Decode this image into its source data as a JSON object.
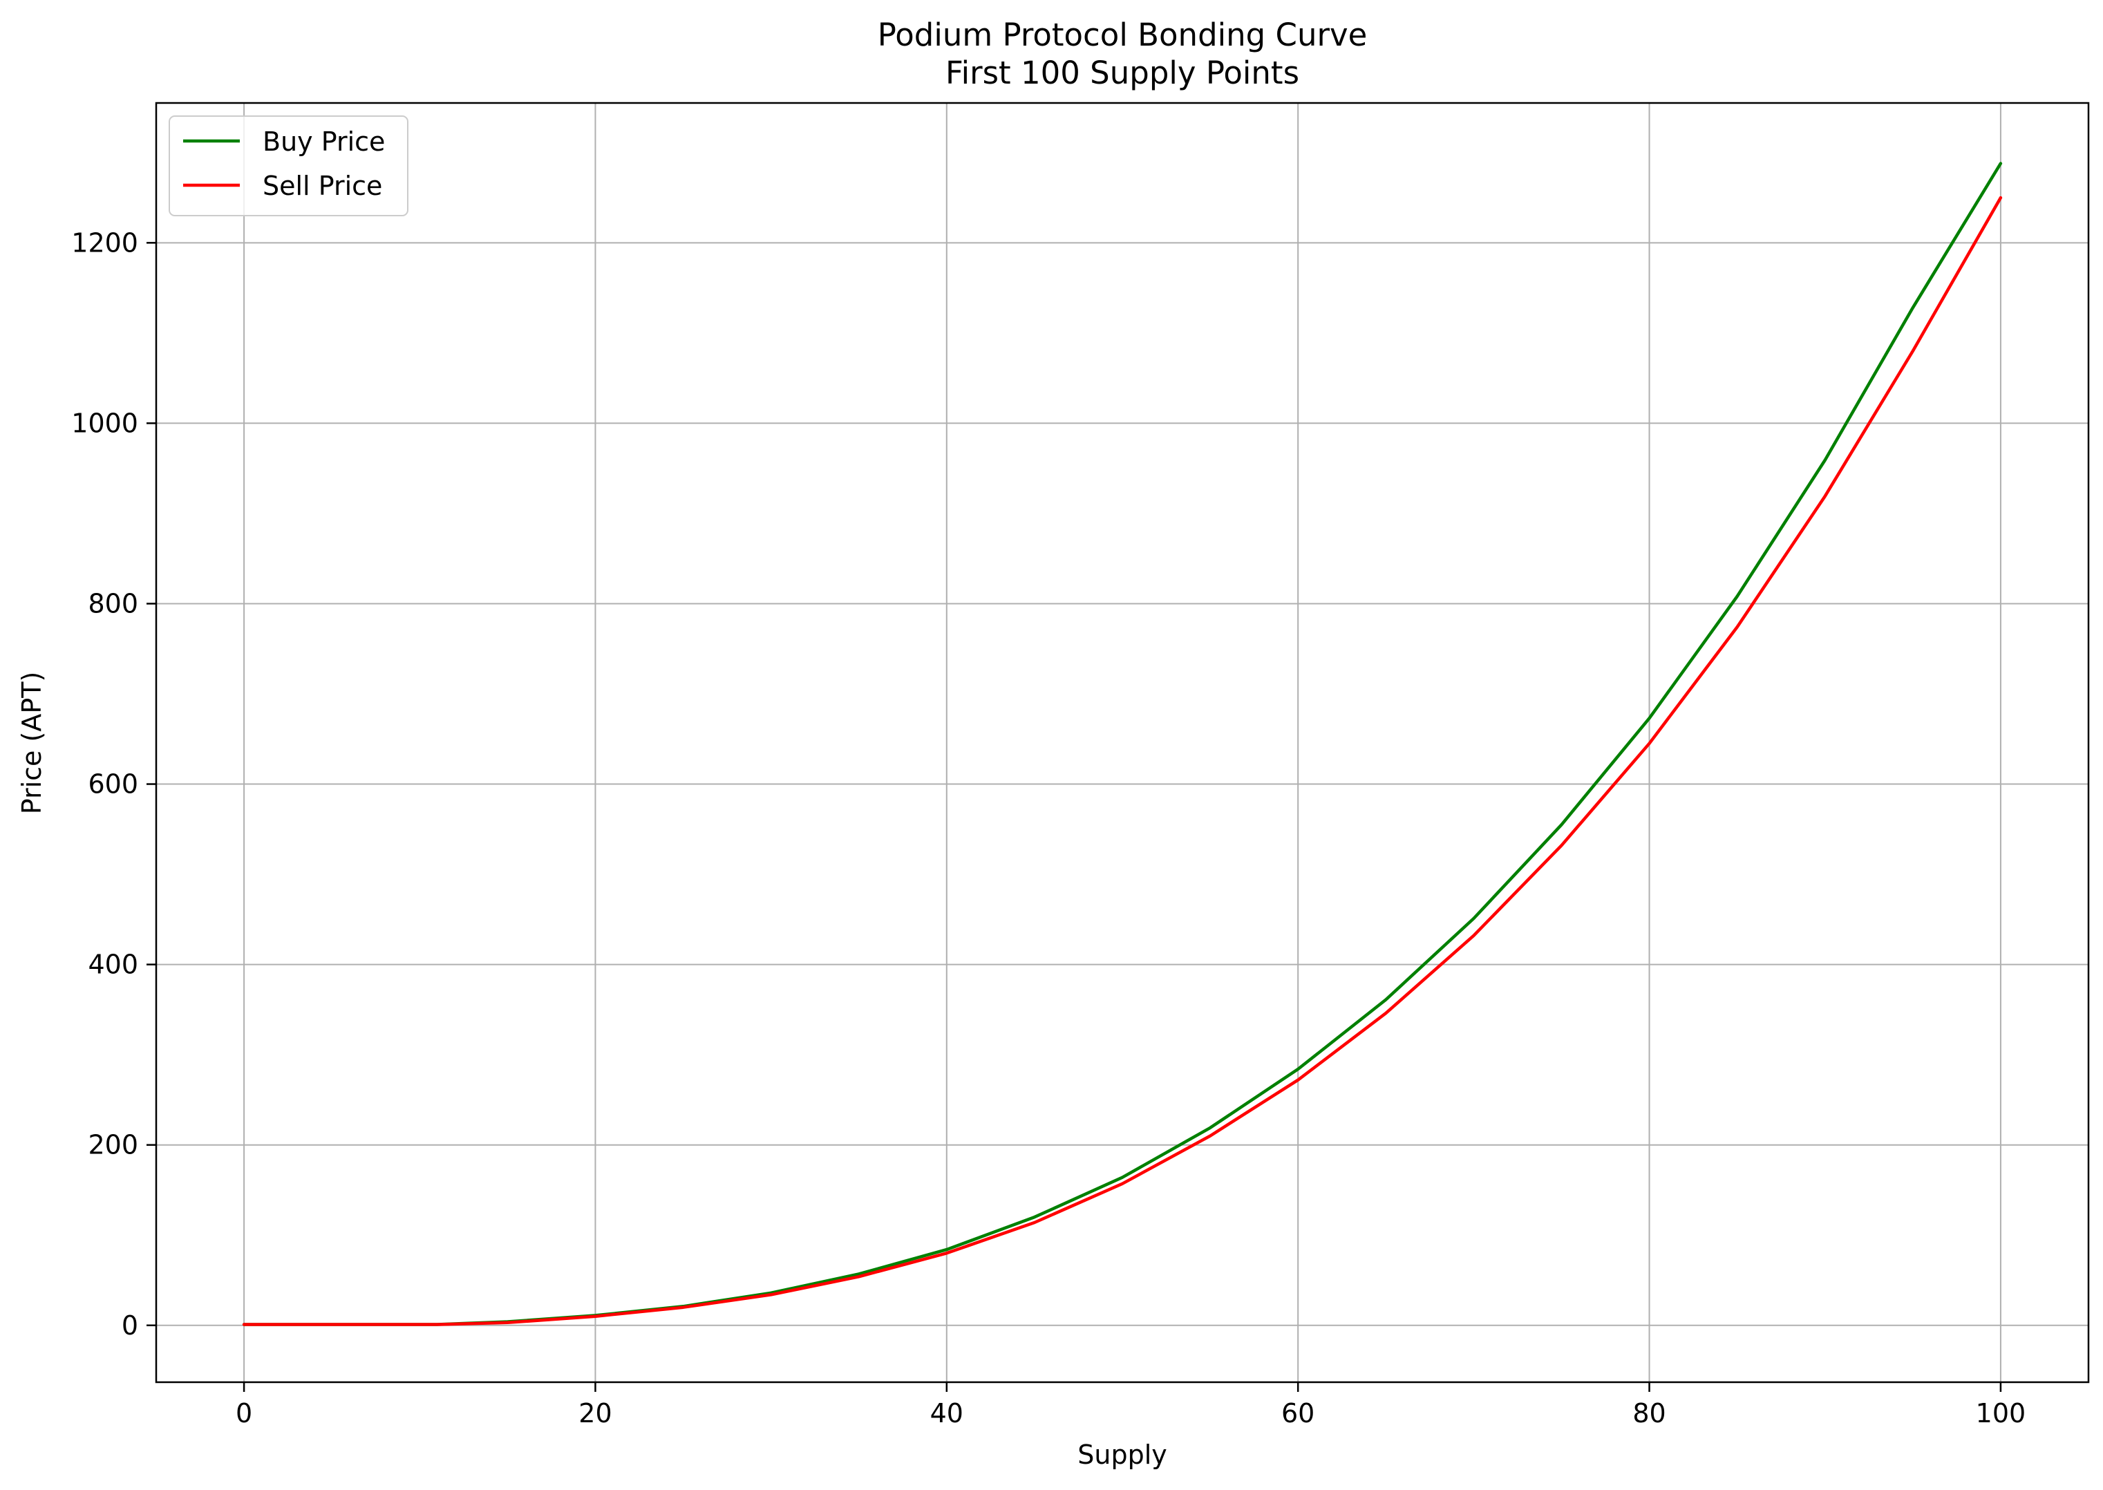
{
  "chart_data": {
    "type": "line",
    "title": "Podium Protocol Bonding Curve",
    "subtitle": "First 100 Supply Points",
    "xlabel": "Supply",
    "ylabel": "Price (APT)",
    "xlim": [
      -5,
      105
    ],
    "ylim": [
      -63,
      1355
    ],
    "xticks": [
      0,
      20,
      40,
      60,
      80,
      100
    ],
    "yticks": [
      0,
      200,
      400,
      600,
      800,
      1000,
      1200
    ],
    "grid": true,
    "legend_position": "top-left",
    "colors": {
      "buy": "#008000",
      "sell": "#ff0000",
      "grid": "#b0b0b0",
      "axes": "#000000"
    },
    "series": [
      {
        "name": "Buy Price",
        "color": "#008000",
        "x": [
          0,
          5,
          10,
          11,
          15,
          20,
          25,
          30,
          35,
          40,
          45,
          50,
          55,
          60,
          65,
          70,
          75,
          80,
          85,
          90,
          95,
          100
        ],
        "y": [
          1,
          1,
          1,
          1,
          4,
          11,
          21,
          36,
          57,
          84,
          120,
          164,
          219,
          284,
          361,
          451,
          555,
          673,
          808,
          959,
          1128,
          1288
        ]
      },
      {
        "name": "Sell Price",
        "color": "#ff0000",
        "x": [
          0,
          5,
          10,
          11,
          15,
          20,
          25,
          30,
          35,
          40,
          45,
          50,
          55,
          60,
          65,
          70,
          75,
          80,
          85,
          90,
          95,
          100
        ],
        "y": [
          1,
          1,
          1,
          1,
          3,
          10,
          20,
          34,
          54,
          80,
          114,
          157,
          210,
          272,
          346,
          432,
          532,
          645,
          774,
          919,
          1080,
          1250
        ]
      }
    ]
  }
}
